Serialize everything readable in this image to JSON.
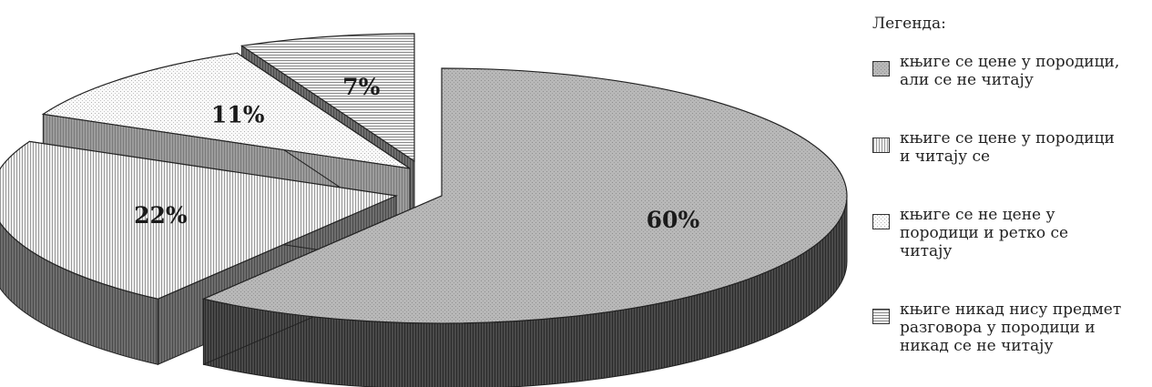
{
  "legend": {
    "title": "Легенда:"
  },
  "chart_data": {
    "type": "pie",
    "title": "",
    "legend_placement": "right",
    "style": "3d-exploded",
    "slices": [
      {
        "label": "књиге се цене у породици,\nали се не читају",
        "value": 60,
        "value_label": "60%",
        "pattern": "dots-gray",
        "color": "#b5b5b5"
      },
      {
        "label": "књиге се цене у породици\nи читају се",
        "value": 22,
        "value_label": "22%",
        "pattern": "vertical-lines",
        "color": "#e8e8e8"
      },
      {
        "label": "књиге се не цене у\nпородици и ретко се\nчитају",
        "value": 11,
        "value_label": "11%",
        "pattern": "light-dots",
        "color": "#f4f4f4"
      },
      {
        "label": "књиге никад нису предмет\nразговора у породици и\nникад се не читају",
        "value": 7,
        "value_label": "7%",
        "pattern": "horizontal-lines",
        "color": "#f0f0f0"
      }
    ]
  }
}
